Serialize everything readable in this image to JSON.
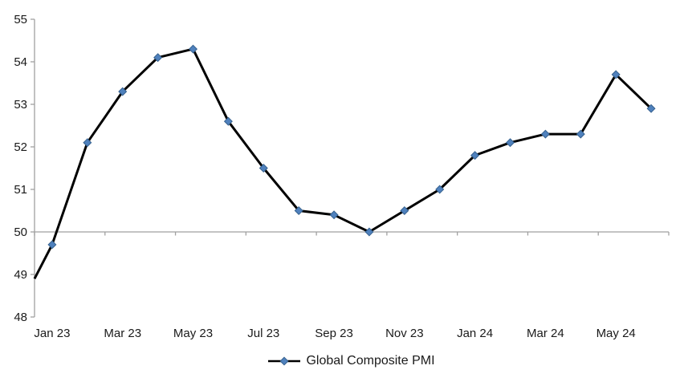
{
  "chart_data": {
    "type": "line",
    "title": "",
    "categories": [
      "Jan 23",
      "Feb 23",
      "Mar 23",
      "Apr 23",
      "May 23",
      "Jun 23",
      "Jul 23",
      "Aug 23",
      "Sep 23",
      "Oct 23",
      "Nov 23",
      "Dec 23",
      "Jan 24",
      "Feb 24",
      "Mar 24",
      "Apr 24",
      "May 24",
      "Jun 24"
    ],
    "series": [
      {
        "name": "Global Composite PMI",
        "values": [
          49.7,
          52.1,
          53.3,
          54.1,
          54.3,
          52.6,
          51.5,
          50.5,
          50.4,
          50.0,
          50.5,
          51.0,
          51.8,
          52.1,
          52.3,
          52.3,
          53.7,
          52.9
        ],
        "left_edge_clipped_value": 48.9,
        "line_color": "#000000",
        "line_width": 3,
        "marker": "diamond",
        "marker_fill": "#4F81BD",
        "marker_edge": "#36618E",
        "marker_size": 9.6
      }
    ],
    "x_axis": {
      "tick_labels": [
        "Jan 23",
        "Mar 23",
        "May 23",
        "Jul 23",
        "Sep 23",
        "Nov 23",
        "Jan 24",
        "Mar 24",
        "May 24"
      ],
      "labeled_category_indices": [
        0,
        2,
        4,
        6,
        8,
        10,
        12,
        14,
        16
      ],
      "tick_mark_every_categories": 2,
      "crosses_at_value": 50,
      "label_position": "low"
    },
    "y_axis": {
      "min": 48,
      "max": 55,
      "step": 1,
      "tick_labels": [
        "48",
        "49",
        "50",
        "51",
        "52",
        "53",
        "54",
        "55"
      ]
    },
    "legend": {
      "label": "Global Composite PMI",
      "position": "bottom-center"
    },
    "colors": {
      "axis": "#A0A0A0",
      "text": "#1A1A1A",
      "background": "#FFFFFF"
    },
    "grid": "off"
  }
}
